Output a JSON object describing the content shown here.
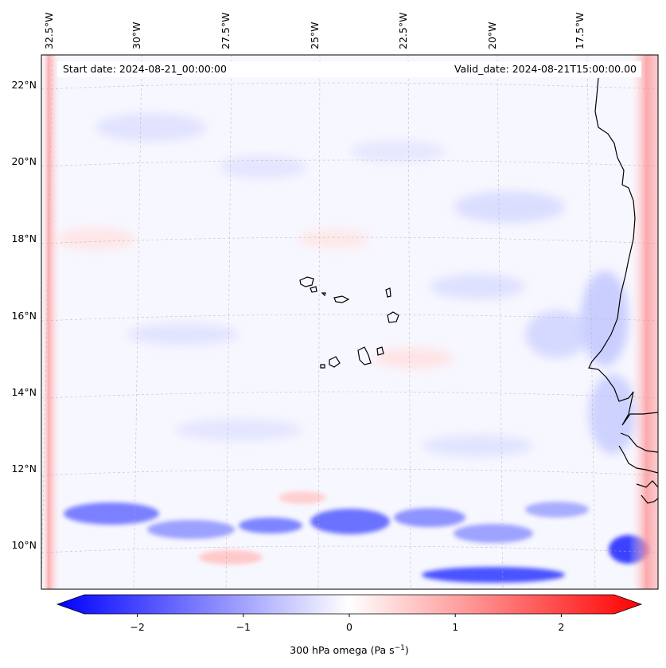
{
  "map": {
    "start_date": "Start date: 2024-08-21_00:00:00",
    "valid_date": "Valid_date: 2024-08-21T15:00:00.00",
    "lon_labels": [
      "32.5°W",
      "30°W",
      "27.5°W",
      "25°W",
      "22.5°W",
      "20°W",
      "17.5°W"
    ],
    "lat_labels": [
      "22°N",
      "20°N",
      "18°N",
      "16°N",
      "14°N",
      "12°N",
      "10°N"
    ],
    "field": "300 hPa omega",
    "colors": {
      "negative": "#0000ff",
      "zero": "#ffffff",
      "positive": "#ff0000",
      "coastline": "#000000",
      "gridline": "#b0b0b0"
    }
  },
  "colorbar": {
    "label_main": "300 hPa omega (Pa s",
    "label_sup": "−1",
    "label_end": ")",
    "ticks": [
      "−2",
      "−1",
      "0",
      "1",
      "2"
    ],
    "tick_values": [
      -2,
      -1,
      0,
      1,
      2
    ],
    "range": [
      -2.5,
      2.5
    ],
    "extend": "both"
  }
}
